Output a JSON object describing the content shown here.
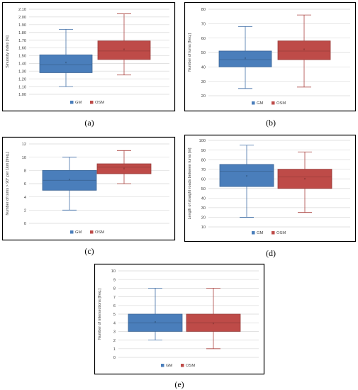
{
  "chart_data": [
    {
      "type": "box",
      "caption": "(a)",
      "ylabel": "Sinuosity index [%]",
      "ylim": [
        1.0,
        2.1
      ],
      "yticks": [
        "1.00",
        "1.10",
        "1.20",
        "1.30",
        "1.40",
        "1.50",
        "1.60",
        "1.70",
        "1.80",
        "1.90",
        "2.00",
        "2.10"
      ],
      "ytick_values": [
        1.0,
        1.1,
        1.2,
        1.3,
        1.4,
        1.5,
        1.6,
        1.7,
        1.8,
        1.9,
        2.0,
        2.1
      ],
      "legend_position": "bottom",
      "series": [
        {
          "name": "GM",
          "color": "#4a7ebb",
          "min": 1.1,
          "q1": 1.28,
          "median": 1.38,
          "q3": 1.51,
          "max": 1.84,
          "mean": 1.41
        },
        {
          "name": "OSM",
          "color": "#be4b48",
          "min": 1.25,
          "q1": 1.45,
          "median": 1.56,
          "q3": 1.69,
          "max": 2.04,
          "mean": 1.58
        }
      ]
    },
    {
      "type": "box",
      "caption": "(b)",
      "ylabel": "Number of turns [freq.]",
      "ylim": [
        20,
        80
      ],
      "yticks": [
        "20",
        "30",
        "40",
        "50",
        "60",
        "70",
        "80"
      ],
      "ytick_values": [
        20,
        30,
        40,
        50,
        60,
        70,
        80
      ],
      "legend_position": "bottom",
      "series": [
        {
          "name": "GM",
          "color": "#4a7ebb",
          "min": 25,
          "q1": 40,
          "median": 45,
          "q3": 51,
          "max": 68,
          "mean": 46
        },
        {
          "name": "OSM",
          "color": "#be4b48",
          "min": 26,
          "q1": 45,
          "median": 51,
          "q3": 58,
          "max": 76,
          "mean": 52
        }
      ]
    },
    {
      "type": "box",
      "caption": "(c)",
      "ylabel": "Number of turns > 90° per 1km [freq.]",
      "ylim": [
        0,
        12
      ],
      "yticks": [
        "0",
        "2",
        "4",
        "6",
        "8",
        "10",
        "12"
      ],
      "ytick_values": [
        0,
        2,
        4,
        6,
        8,
        10,
        12
      ],
      "legend_position": "bottom",
      "series": [
        {
          "name": "GM",
          "color": "#4a7ebb",
          "min": 2,
          "q1": 5,
          "median": 6.5,
          "q3": 8,
          "max": 10,
          "mean": 6.6
        },
        {
          "name": "OSM",
          "color": "#be4b48",
          "min": 6,
          "q1": 7.5,
          "median": 8.5,
          "q3": 9,
          "max": 11,
          "mean": 8.3
        }
      ]
    },
    {
      "type": "box",
      "caption": "(d)",
      "ylabel": "Length of straight roads between turns [m]",
      "ylim": [
        10,
        100
      ],
      "yticks": [
        "10",
        "20",
        "30",
        "40",
        "50",
        "60",
        "70",
        "80",
        "90",
        "100"
      ],
      "ytick_values": [
        10,
        20,
        30,
        40,
        50,
        60,
        70,
        80,
        90,
        100
      ],
      "legend_position": "bottom",
      "series": [
        {
          "name": "GM",
          "color": "#4a7ebb",
          "min": 20,
          "q1": 52,
          "median": 68,
          "q3": 75,
          "max": 95,
          "mean": 63
        },
        {
          "name": "OSM",
          "color": "#be4b48",
          "min": 25,
          "q1": 50,
          "median": 62,
          "q3": 70,
          "max": 88,
          "mean": 60
        }
      ]
    },
    {
      "type": "box",
      "caption": "(e)",
      "ylabel": "Number of intersections [freq.]",
      "ylim": [
        0,
        10
      ],
      "yticks": [
        "0",
        "1",
        "2",
        "3",
        "4",
        "5",
        "6",
        "7",
        "8",
        "9",
        "10"
      ],
      "ytick_values": [
        0,
        1,
        2,
        3,
        4,
        5,
        6,
        7,
        8,
        9,
        10
      ],
      "legend_position": "bottom",
      "series": [
        {
          "name": "GM",
          "color": "#4a7ebb",
          "min": 2,
          "q1": 3,
          "median": 4,
          "q3": 5,
          "max": 8,
          "mean": 4.1
        },
        {
          "name": "OSM",
          "color": "#be4b48",
          "min": 1,
          "q1": 3,
          "median": 4,
          "q3": 5,
          "max": 8,
          "mean": 3.9
        }
      ]
    }
  ]
}
